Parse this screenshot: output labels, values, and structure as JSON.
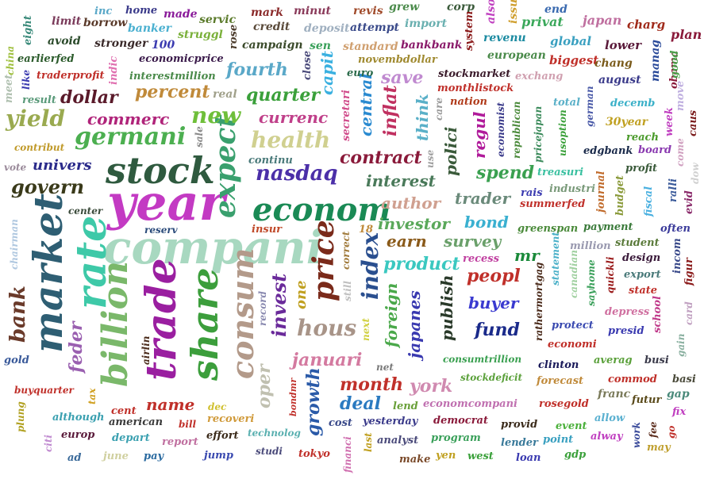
{
  "words": [
    {
      "text": "compani",
      "color": "#a8d8c0"
    },
    {
      "text": "year",
      "color": "#c33ac3"
    },
    {
      "text": "stock",
      "color": "#2f5a3f"
    },
    {
      "text": "market",
      "color": "#2e5e73"
    },
    {
      "text": "rate",
      "color": "#3ec9a8"
    },
    {
      "text": "econom",
      "color": "#1a8a55"
    },
    {
      "text": "trade",
      "color": "#9a1fa0"
    },
    {
      "text": "share",
      "color": "#3c9e3c"
    },
    {
      "text": "billion",
      "color": "#7ab86a"
    },
    {
      "text": "expect",
      "color": "#3aa06e"
    },
    {
      "text": "price",
      "color": "#7a2a1a"
    },
    {
      "text": "consum",
      "color": "#b39a8a"
    },
    {
      "text": "germani",
      "color": "#4caf50"
    },
    {
      "text": "nasdaq",
      "color": "#4b2fa8"
    },
    {
      "text": "govern",
      "color": "#3a3a1a"
    },
    {
      "text": "health",
      "color": "#d0d090"
    },
    {
      "text": "new",
      "color": "#6fbf3a"
    },
    {
      "text": "yield",
      "color": "#9aaa50"
    },
    {
      "text": "index",
      "color": "#2a4f8f"
    },
    {
      "text": "hous",
      "color": "#a89488"
    },
    {
      "text": "invest",
      "color": "#6a2a9a"
    },
    {
      "text": "bank",
      "color": "#6a3a2a"
    },
    {
      "text": "percent",
      "color": "#c08a3a"
    },
    {
      "text": "dollar",
      "color": "#5a1a2a"
    },
    {
      "text": "commerc",
      "color": "#b0247a"
    },
    {
      "text": "quarter",
      "color": "#3aa03a"
    },
    {
      "text": "currenc",
      "color": "#c0408a"
    },
    {
      "text": "contract",
      "color": "#8a1a3a"
    },
    {
      "text": "interest",
      "color": "#4a7a5a"
    },
    {
      "text": "fourth",
      "color": "#5aa8c8"
    },
    {
      "text": "feder",
      "color": "#9a60b0"
    },
    {
      "text": "januari",
      "color": "#d47aa0"
    },
    {
      "text": "oper",
      "color": "#c0c0b0"
    },
    {
      "text": "growth",
      "color": "#2a5aa8"
    },
    {
      "text": "month",
      "color": "#c0302a"
    },
    {
      "text": "deal",
      "color": "#2a7ac0"
    },
    {
      "text": "york",
      "color": "#d08ab0"
    },
    {
      "text": "foreign",
      "color": "#4aa84a"
    },
    {
      "text": "japanes",
      "color": "#3a3ab0"
    },
    {
      "text": "publish",
      "color": "#2a3a2a"
    },
    {
      "text": "fund",
      "color": "#1a2a8a"
    },
    {
      "text": "buyer",
      "color": "#3a3ad0"
    },
    {
      "text": "peopl",
      "color": "#c0302a"
    },
    {
      "text": "product",
      "color": "#3ac8c0"
    },
    {
      "text": "survey",
      "color": "#6aa06a"
    },
    {
      "text": "earn",
      "color": "#8a5a1a"
    },
    {
      "text": "investor",
      "color": "#5aa85a"
    },
    {
      "text": "author",
      "color": "#d0a090"
    },
    {
      "text": "trader",
      "color": "#6a8a7a"
    },
    {
      "text": "bond",
      "color": "#3ab0d0"
    },
    {
      "text": "spend",
      "color": "#3aa050"
    },
    {
      "text": "polici",
      "color": "#3a5a3a"
    },
    {
      "text": "regul",
      "color": "#b01a9a"
    },
    {
      "text": "inflat",
      "color": "#c03060"
    },
    {
      "text": "think",
      "color": "#5ab0c8"
    },
    {
      "text": "save",
      "color": "#c08ad0"
    },
    {
      "text": "central",
      "color": "#2a8ad0"
    },
    {
      "text": "capit",
      "color": "#3ab0e0"
    },
    {
      "text": "univers",
      "color": "#2a2a8a"
    },
    {
      "text": "name",
      "color": "#c0302a"
    },
    {
      "text": "mr",
      "color": "#1a8a3a"
    },
    {
      "text": "limit",
      "color": "#7a3a5a"
    },
    {
      "text": "inc",
      "color": "#5aa8c8"
    },
    {
      "text": "home",
      "color": "#3a3a8a"
    },
    {
      "text": "made",
      "color": "#8a1a9a"
    },
    {
      "text": "servic",
      "color": "#5a7a2a"
    },
    {
      "text": "mark",
      "color": "#8a2a2a"
    },
    {
      "text": "minut",
      "color": "#8a3a5a"
    },
    {
      "text": "revis",
      "color": "#a04a2a"
    },
    {
      "text": "grew",
      "color": "#4a8a4a"
    },
    {
      "text": "corp",
      "color": "#3a5a3a"
    },
    {
      "text": "also",
      "color": "#c040c0"
    },
    {
      "text": "issu",
      "color": "#d0a030"
    },
    {
      "text": "end",
      "color": "#3a6ab0"
    },
    {
      "text": "privat",
      "color": "#3aa85a"
    },
    {
      "text": "japan",
      "color": "#c070a0"
    },
    {
      "text": "charg",
      "color": "#a02a1a"
    },
    {
      "text": "plan",
      "color": "#8a1a3a"
    },
    {
      "text": "eight",
      "color": "#3a8a7a"
    },
    {
      "text": "borrow",
      "color": "#5a3a2a"
    },
    {
      "text": "banker",
      "color": "#4ab0d0"
    },
    {
      "text": "struggl",
      "color": "#7ab03a"
    },
    {
      "text": "rose",
      "color": "#4a3a2a"
    },
    {
      "text": "credit",
      "color": "#5a4a3a"
    },
    {
      "text": "deposit",
      "color": "#a0b0c0"
    },
    {
      "text": "attempt",
      "color": "#3a4a8a"
    },
    {
      "text": "import",
      "color": "#6ab0b0"
    },
    {
      "text": "system",
      "color": "#8a1a1a"
    },
    {
      "text": "revenu",
      "color": "#1a8aa0"
    },
    {
      "text": "global",
      "color": "#3aa0c0"
    },
    {
      "text": "lower",
      "color": "#5a1a3a"
    },
    {
      "text": "avoid",
      "color": "#2a4a2a"
    },
    {
      "text": "stronger",
      "color": "#3a2a2a"
    },
    {
      "text": "100",
      "color": "#3a3ab0"
    },
    {
      "text": "campaign",
      "color": "#3a4a2a"
    },
    {
      "text": "sen",
      "color": "#3aa05a"
    },
    {
      "text": "standard",
      "color": "#d0a070"
    },
    {
      "text": "bankbank",
      "color": "#8a1a6a"
    },
    {
      "text": "european",
      "color": "#4a8a4a"
    },
    {
      "text": "biggest",
      "color": "#c0302a"
    },
    {
      "text": "chang",
      "color": "#7a5a1a"
    },
    {
      "text": "manag",
      "color": "#2a4a9a"
    },
    {
      "text": "obama",
      "color": "#8a1a3a"
    },
    {
      "text": "china",
      "color": "#a0c040"
    },
    {
      "text": "earlierfed",
      "color": "#2a5a2a"
    },
    {
      "text": "economicprice",
      "color": "#3a1a4a"
    },
    {
      "text": "novembdollar",
      "color": "#a08a30"
    },
    {
      "text": "stockmarket",
      "color": "#3a1a2a"
    },
    {
      "text": "exchang",
      "color": "#d0a0b0"
    },
    {
      "text": "august",
      "color": "#3a3a8a"
    },
    {
      "text": "good",
      "color": "#4aa04a"
    },
    {
      "text": "meet",
      "color": "#b0c0b0"
    },
    {
      "text": "like",
      "color": "#3a3ab0"
    },
    {
      "text": "traderprofit",
      "color": "#c0302a"
    },
    {
      "text": "indic",
      "color": "#e070b0"
    },
    {
      "text": "interestmillion",
      "color": "#4a8a4a"
    },
    {
      "text": "close",
      "color": "#4a4a7a"
    },
    {
      "text": "euro",
      "color": "#2a6a4a"
    },
    {
      "text": "monthlistock",
      "color": "#c0302a"
    },
    {
      "text": "move",
      "color": "#c0b0e0"
    },
    {
      "text": "result",
      "color": "#5a9a7a"
    },
    {
      "text": "real",
      "color": "#a0a08a"
    },
    {
      "text": "secretari",
      "color": "#d04a8a"
    },
    {
      "text": "care",
      "color": "#9a9a9a"
    },
    {
      "text": "nation",
      "color": "#b03a1a"
    },
    {
      "text": "economist",
      "color": "#3a3a8a"
    },
    {
      "text": "republican",
      "color": "#4a8a3a"
    },
    {
      "text": "pricejapan",
      "color": "#3a8a5a"
    },
    {
      "text": "total",
      "color": "#5ab0c8"
    },
    {
      "text": "decemb",
      "color": "#3ab0c8"
    },
    {
      "text": "week",
      "color": "#c040c0"
    },
    {
      "text": "caus",
      "color": "#7a1a1a"
    },
    {
      "text": "contribut",
      "color": "#c09a2a"
    },
    {
      "text": "sale",
      "color": "#8a8a8a"
    },
    {
      "text": "continu",
      "color": "#4a7a7a"
    },
    {
      "text": "use",
      "color": "#a0a0a0"
    },
    {
      "text": "usoption",
      "color": "#3aa03a"
    },
    {
      "text": "german",
      "color": "#4a5aa8"
    },
    {
      "text": "30year",
      "color": "#c0a020"
    },
    {
      "text": "reach",
      "color": "#4a9a2a"
    },
    {
      "text": "edgbank",
      "color": "#1a2a4a"
    },
    {
      "text": "board",
      "color": "#8a3ab0"
    },
    {
      "text": "come",
      "color": "#d0a0c0"
    },
    {
      "text": "dow",
      "color": "#d0d0d0"
    },
    {
      "text": "vote",
      "color": "#9a8a9a"
    },
    {
      "text": "treasuri",
      "color": "#3ac0a0"
    },
    {
      "text": "profit",
      "color": "#3a5a3a"
    },
    {
      "text": "rais",
      "color": "#3a3ab0"
    },
    {
      "text": "industri",
      "color": "#7a9a7a"
    },
    {
      "text": "journal",
      "color": "#c06a2a"
    },
    {
      "text": "budget",
      "color": "#8a9a3a"
    },
    {
      "text": "fiscal",
      "color": "#4ab0e0"
    },
    {
      "text": "ralli",
      "color": "#3a5a9a"
    },
    {
      "text": "evid",
      "color": "#8a2a6a"
    },
    {
      "text": "summerfed",
      "color": "#c0302a"
    },
    {
      "text": "center",
      "color": "#3a4a3a"
    },
    {
      "text": "chairman",
      "color": "#b0c8e0"
    },
    {
      "text": "reserv",
      "color": "#2a4a7a"
    },
    {
      "text": "insur",
      "color": "#c04a2a"
    },
    {
      "text": "18",
      "color": "#c08a3a"
    },
    {
      "text": "greenspan",
      "color": "#4a8a3a"
    },
    {
      "text": "payment",
      "color": "#3a7a3a"
    },
    {
      "text": "often",
      "color": "#3a3a9a"
    },
    {
      "text": "million",
      "color": "#9a9ab0"
    },
    {
      "text": "student",
      "color": "#5a7a3a"
    },
    {
      "text": "design",
      "color": "#3a1a3a"
    },
    {
      "text": "incom",
      "color": "#3a4a8a"
    },
    {
      "text": "figur",
      "color": "#8a1a1a"
    },
    {
      "text": "correct",
      "color": "#a07a3a"
    },
    {
      "text": "still",
      "color": "#c0c0c0"
    },
    {
      "text": "recess",
      "color": "#c040a0"
    },
    {
      "text": "statement",
      "color": "#4ab0c8"
    },
    {
      "text": "canadian",
      "color": "#a0d0a0"
    },
    {
      "text": "sayhome",
      "color": "#3aa05a"
    },
    {
      "text": "quickli",
      "color": "#9a1a1a"
    },
    {
      "text": "export",
      "color": "#4a7a7a"
    },
    {
      "text": "state",
      "color": "#c0302a"
    },
    {
      "text": "record",
      "color": "#8a8ab0"
    },
    {
      "text": "one",
      "color": "#c0a020"
    },
    {
      "text": "rathermortgag",
      "color": "#4a2a1a"
    },
    {
      "text": "depress",
      "color": "#d070a0"
    },
    {
      "text": "school",
      "color": "#c03a8a"
    },
    {
      "text": "card",
      "color": "#c0a0c0"
    },
    {
      "text": "protect",
      "color": "#3a4ab0"
    },
    {
      "text": "presid",
      "color": "#3a3ab0"
    },
    {
      "text": "gain",
      "color": "#8ab0a0"
    },
    {
      "text": "airlin",
      "color": "#4a2a1a"
    },
    {
      "text": "next",
      "color": "#d0d040"
    },
    {
      "text": "economi",
      "color": "#c0302a"
    },
    {
      "text": "gold",
      "color": "#3a5a9a"
    },
    {
      "text": "net",
      "color": "#7a7a7a"
    },
    {
      "text": "consumtrillion",
      "color": "#3aa050"
    },
    {
      "text": "clinton",
      "color": "#1a1a5a"
    },
    {
      "text": "averag",
      "color": "#5aa03a"
    },
    {
      "text": "busi",
      "color": "#3a3a4a"
    },
    {
      "text": "basi",
      "color": "#4a4a3a"
    },
    {
      "text": "stockdeficit",
      "color": "#5aa03a"
    },
    {
      "text": "forecast",
      "color": "#c08a3a"
    },
    {
      "text": "commod",
      "color": "#c0302a"
    },
    {
      "text": "buyquarter",
      "color": "#c0302a"
    },
    {
      "text": "tax",
      "color": "#d0a020"
    },
    {
      "text": "bondmr",
      "color": "#c0302a"
    },
    {
      "text": "franc",
      "color": "#7a7a5a"
    },
    {
      "text": "gap",
      "color": "#4a8a7a"
    },
    {
      "text": "futur",
      "color": "#5a4a1a"
    },
    {
      "text": "fix",
      "color": "#c040c0"
    },
    {
      "text": "plung",
      "color": "#b0a020"
    },
    {
      "text": "although",
      "color": "#3aa0b0"
    },
    {
      "text": "cent",
      "color": "#c0302a"
    },
    {
      "text": "dec",
      "color": "#d0c030"
    },
    {
      "text": "lend",
      "color": "#6aa03a"
    },
    {
      "text": "economcompani",
      "color": "#c070b0"
    },
    {
      "text": "rosegold",
      "color": "#c0302a"
    },
    {
      "text": "citi",
      "color": "#c08ad0"
    },
    {
      "text": "american",
      "color": "#3a3a3a"
    },
    {
      "text": "bill",
      "color": "#c0302a"
    },
    {
      "text": "recoveri",
      "color": "#d09a3a"
    },
    {
      "text": "cost",
      "color": "#3a4a8a"
    },
    {
      "text": "yesterday",
      "color": "#3a3a8a"
    },
    {
      "text": "democrat",
      "color": "#8a1a3a"
    },
    {
      "text": "provid",
      "color": "#3a2a1a"
    },
    {
      "text": "event",
      "color": "#4ab03a"
    },
    {
      "text": "allow",
      "color": "#5ab0d0"
    },
    {
      "text": "work",
      "color": "#3a4a9a"
    },
    {
      "text": "fee",
      "color": "#5a2a1a"
    },
    {
      "text": "go",
      "color": "#c0302a"
    },
    {
      "text": "europ",
      "color": "#5a1a3a"
    },
    {
      "text": "depart",
      "color": "#3aa0b0"
    },
    {
      "text": "report",
      "color": "#c070a0"
    },
    {
      "text": "effort",
      "color": "#3a2a1a"
    },
    {
      "text": "technolog",
      "color": "#5ab0b0"
    },
    {
      "text": "studi",
      "color": "#4a4a7a"
    },
    {
      "text": "financi",
      "color": "#d070b0"
    },
    {
      "text": "last",
      "color": "#c0a020"
    },
    {
      "text": "analyst",
      "color": "#4a4a7a"
    },
    {
      "text": "program",
      "color": "#3aa05a"
    },
    {
      "text": "lender",
      "color": "#3a7a9a"
    },
    {
      "text": "point",
      "color": "#3aa0c0"
    },
    {
      "text": "alway",
      "color": "#c040c0"
    },
    {
      "text": "ad",
      "color": "#3a6a9a"
    },
    {
      "text": "june",
      "color": "#d0d0a0"
    },
    {
      "text": "pay",
      "color": "#2a6aa0"
    },
    {
      "text": "jump",
      "color": "#3a4ab0"
    },
    {
      "text": "tokyo",
      "color": "#c0302a"
    },
    {
      "text": "make",
      "color": "#7a4a2a"
    },
    {
      "text": "yen",
      "color": "#c0a020"
    },
    {
      "text": "west",
      "color": "#3aa03a"
    },
    {
      "text": "loan",
      "color": "#3a3ab0"
    },
    {
      "text": "gdp",
      "color": "#3aa03a"
    },
    {
      "text": "may",
      "color": "#c0a030"
    }
  ]
}
